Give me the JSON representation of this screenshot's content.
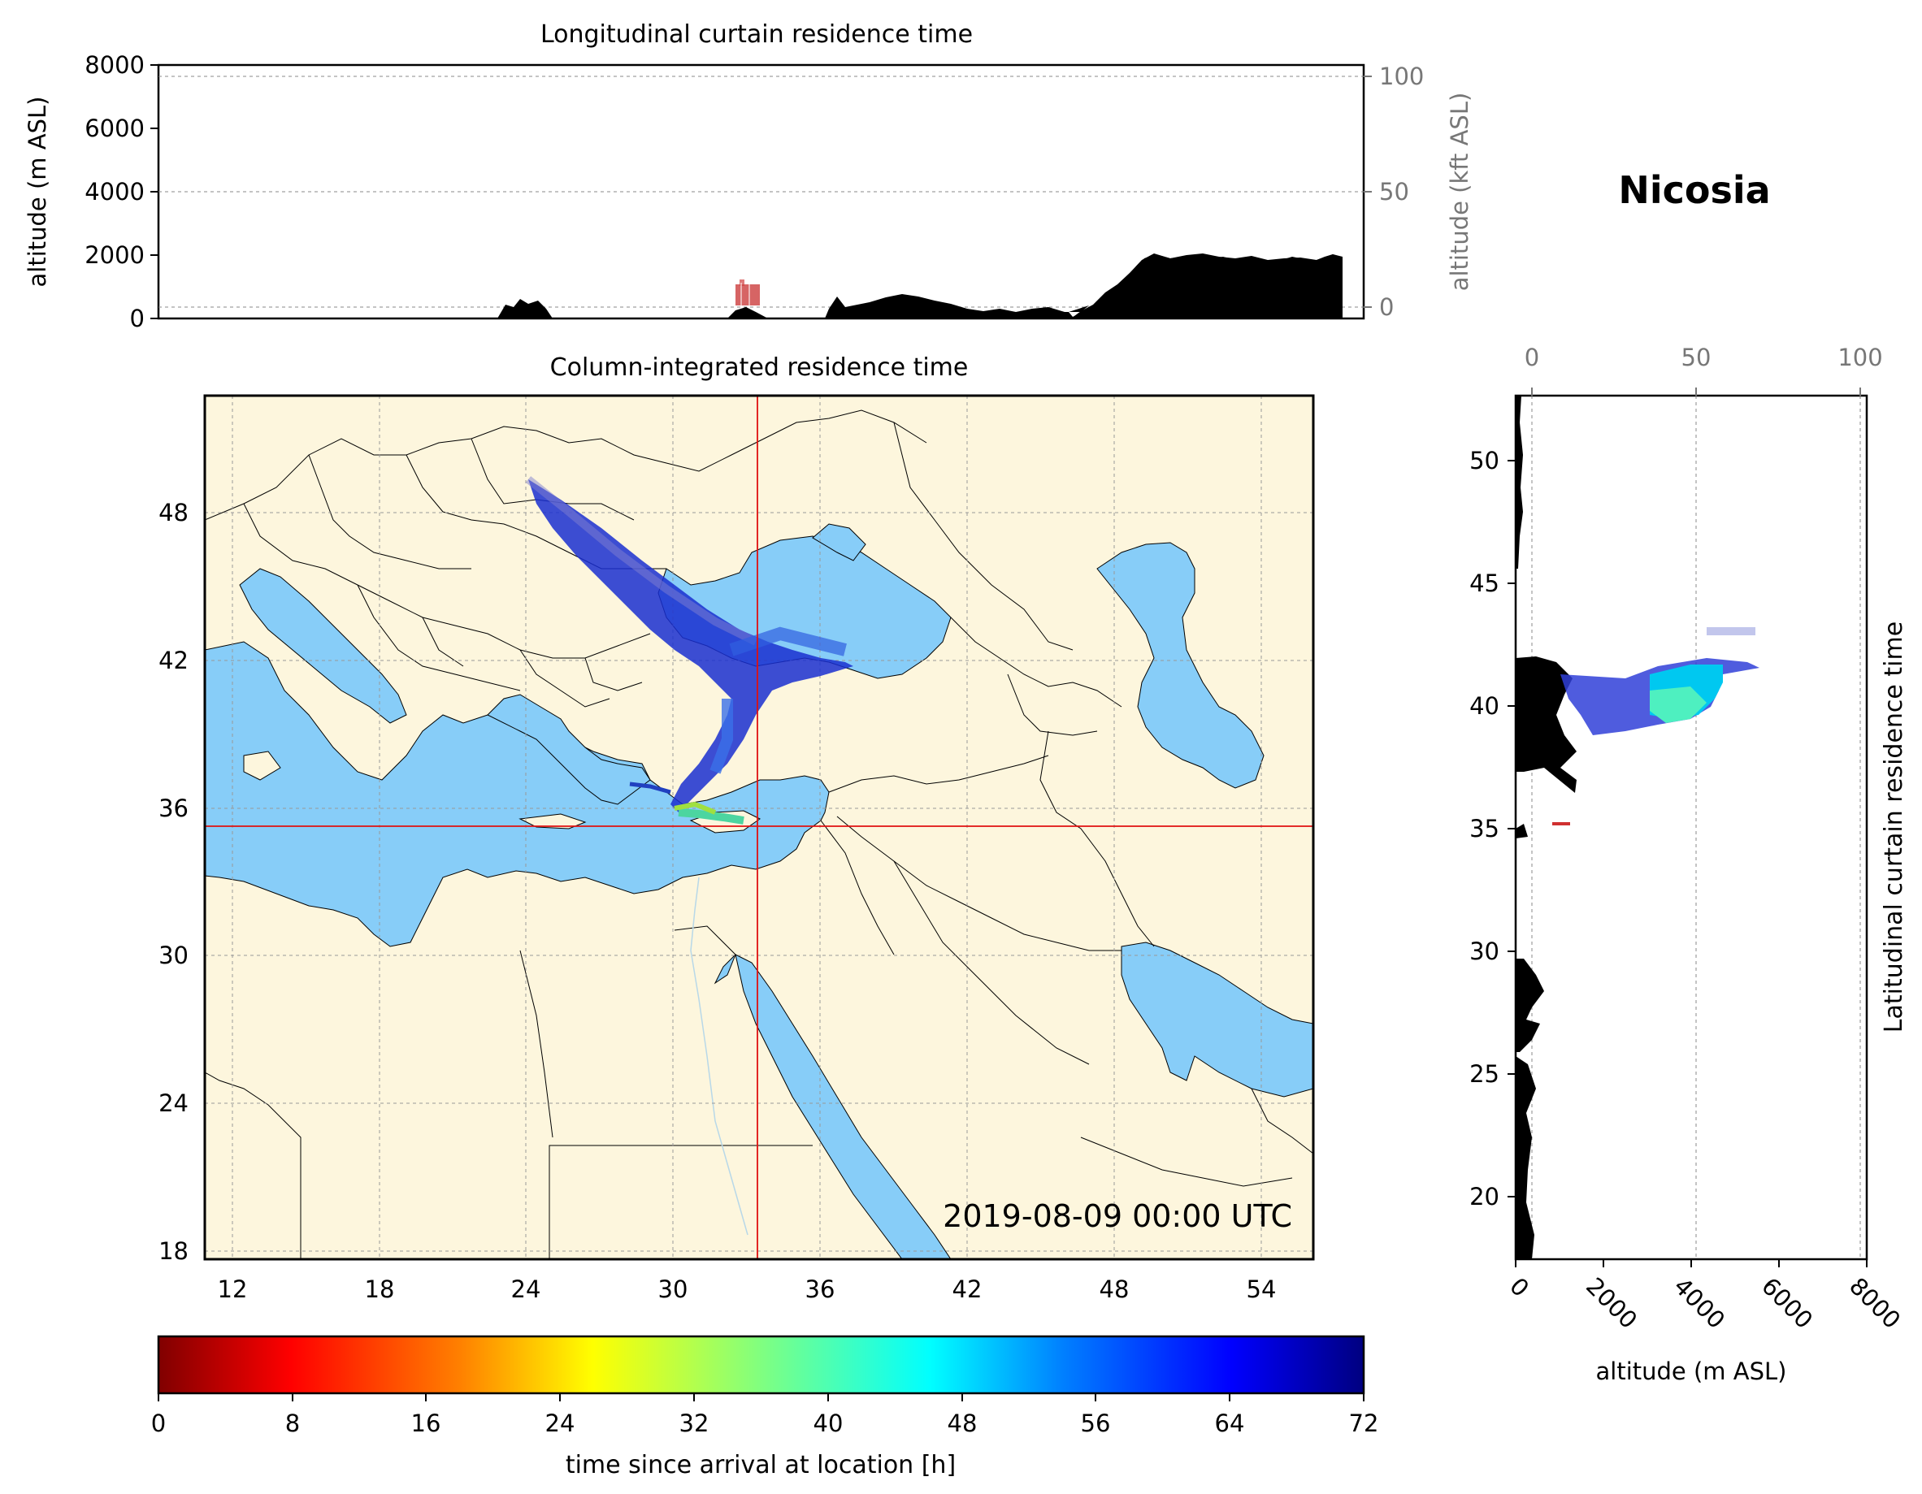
{
  "top_panel": {
    "title": "Longitudinal curtain residence time",
    "ylabel": "altitude (m ASL)",
    "ylabel_right": "altitude (kft ASL)",
    "yticks": [
      "0",
      "2000",
      "4000",
      "6000",
      "8000"
    ],
    "yticks_right": [
      "0",
      "50",
      "100"
    ]
  },
  "location_title": "Nicosia",
  "map_panel": {
    "title": "Column-integrated residence time",
    "xticks": [
      "12",
      "18",
      "24",
      "30",
      "36",
      "42",
      "48",
      "54"
    ],
    "yticks": [
      "18",
      "24",
      "30",
      "36",
      "42",
      "48"
    ],
    "timestamp": "2019-08-09 00:00 UTC",
    "land_color": "#fdf6dd",
    "sea_color": "#87cdf8",
    "crosshair_color": "#e01010"
  },
  "right_panel": {
    "title": "Latitudinal curtain residence time",
    "xlabel": "altitude (m ASL)",
    "xticks": [
      "0",
      "2000",
      "4000",
      "6000",
      "8000"
    ],
    "xticks_top": [
      "0",
      "50",
      "100"
    ],
    "yticks": [
      "20",
      "25",
      "30",
      "35",
      "40",
      "45",
      "50"
    ]
  },
  "colorbar": {
    "label": "time since arrival at location [h]",
    "ticks": [
      "0",
      "8",
      "16",
      "24",
      "32",
      "40",
      "48",
      "56",
      "64",
      "72"
    ],
    "colormap": "jet_r"
  }
}
